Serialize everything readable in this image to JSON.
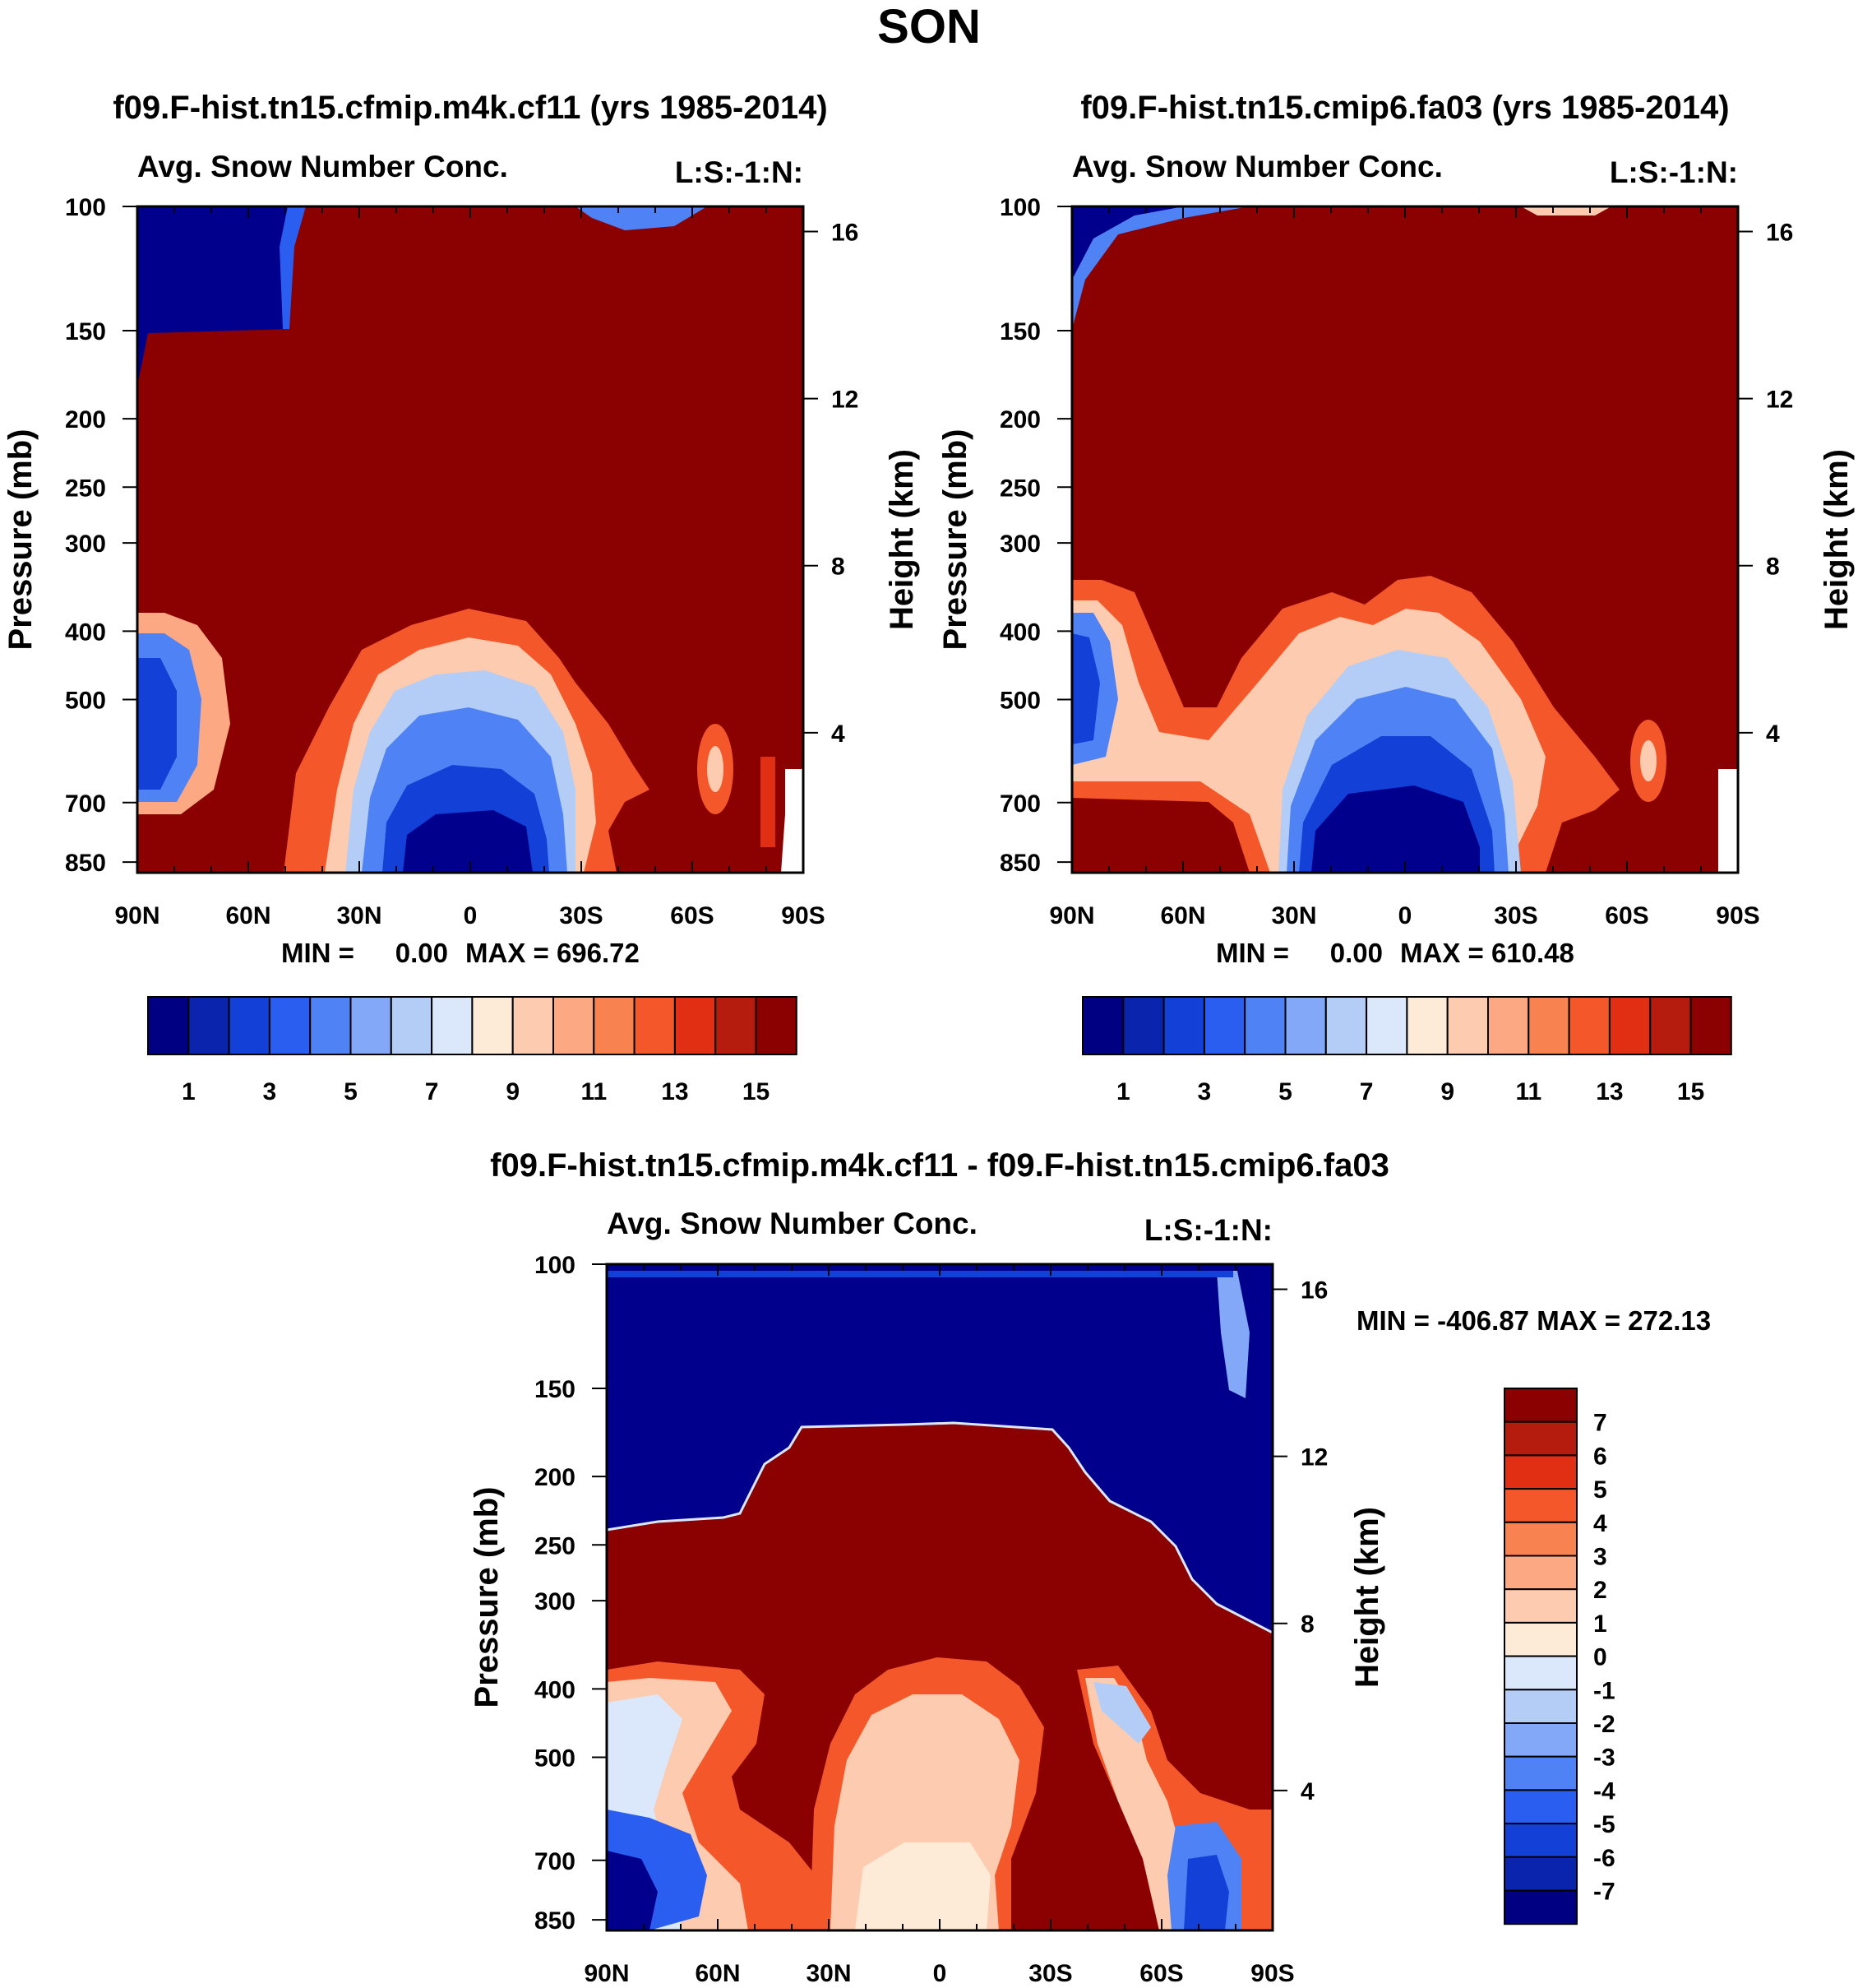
{
  "page_title": "SON",
  "colors": {
    "deep_blue": "#00008c",
    "deep_red": "#8b0000",
    "scale_17": [
      "#000083",
      "#0a24ad",
      "#1341d8",
      "#2a5ef0",
      "#4f83f5",
      "#82a8f7",
      "#b4cdf7",
      "#dbe8fb",
      "#fdebd8",
      "#fccbb0",
      "#fba883",
      "#f88250",
      "#f4582a",
      "#e02f13",
      "#b51c0d",
      "#8b0000"
    ]
  },
  "chart_data": [
    {
      "type": "heatmap",
      "title": "f09.F-hist.tn15.cfmip.m4k.cf11 (yrs 1985-2014)",
      "left_string": "Avg. Snow Number Conc.",
      "right_string": "L:S:-1:N:",
      "ylabel": "Pressure (mb)",
      "y2label": "Height (km)",
      "x_ticks": [
        "90N",
        "60N",
        "30N",
        "0",
        "30S",
        "60S",
        "90S"
      ],
      "y_ticks": [
        "100",
        "150",
        "200",
        "250",
        "300",
        "400",
        "500",
        "700",
        "850"
      ],
      "y2_ticks": [
        "16",
        "12",
        "8",
        "4"
      ],
      "stats": {
        "min_label": "MIN =",
        "min": "0.00",
        "max_label": "MAX = 696.72"
      },
      "colorbar_labels": [
        "1",
        "3",
        "5",
        "7",
        "9",
        "11",
        "13",
        "15"
      ]
    },
    {
      "type": "heatmap",
      "title": "f09.F-hist.tn15.cmip6.fa03 (yrs 1985-2014)",
      "left_string": "Avg. Snow Number Conc.",
      "right_string": "L:S:-1:N:",
      "ylabel": "Pressure (mb)",
      "y2label": "Height (km)",
      "x_ticks": [
        "90N",
        "60N",
        "30N",
        "0",
        "30S",
        "60S",
        "90S"
      ],
      "y_ticks": [
        "100",
        "150",
        "200",
        "250",
        "300",
        "400",
        "500",
        "700",
        "850"
      ],
      "y2_ticks": [
        "16",
        "12",
        "8",
        "4"
      ],
      "stats": {
        "min_label": "MIN =",
        "min": "0.00",
        "max_label": "MAX = 610.48"
      },
      "colorbar_labels": [
        "1",
        "3",
        "5",
        "7",
        "9",
        "11",
        "13",
        "15"
      ]
    },
    {
      "type": "heatmap",
      "title": "f09.F-hist.tn15.cfmip.m4k.cf11 - f09.F-hist.tn15.cmip6.fa03",
      "left_string": "Avg. Snow Number Conc.",
      "right_string": "L:S:-1:N:",
      "ylabel": "Pressure (mb)",
      "y2label": "Height (km)",
      "x_ticks": [
        "90N",
        "60N",
        "30N",
        "0",
        "30S",
        "60S",
        "90S"
      ],
      "y_ticks": [
        "100",
        "150",
        "200",
        "250",
        "300",
        "400",
        "500",
        "700",
        "850"
      ],
      "y2_ticks": [
        "16",
        "12",
        "8",
        "4"
      ],
      "stats": {
        "text": "MIN = -406.87  MAX = 272.13"
      },
      "colorbar_labels": [
        "7",
        "6",
        "5",
        "4",
        "3",
        "2",
        "1",
        "0",
        "-1",
        "-2",
        "-3",
        "-4",
        "-5",
        "-6",
        "-7"
      ]
    }
  ]
}
